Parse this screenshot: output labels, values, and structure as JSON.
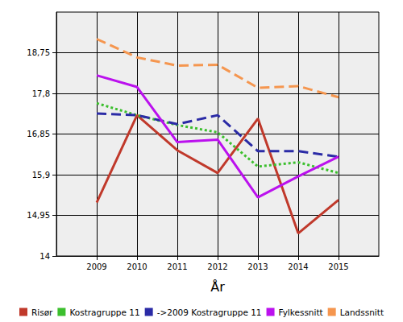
{
  "chart_data": {
    "type": "line",
    "x_label": "År",
    "x": [
      2009,
      2010,
      2011,
      2012,
      2013,
      2014,
      2015
    ],
    "xlim": [
      2008,
      2016
    ],
    "xticks": [
      2009,
      2010,
      2011,
      2012,
      2013,
      2014,
      2015
    ],
    "ylim": [
      14,
      19.7
    ],
    "yticks": [
      14,
      {
        "value": 14.95,
        "label": "14,95"
      },
      {
        "value": 15.9,
        "label": "15,9"
      },
      {
        "value": 16.85,
        "label": "16,85"
      },
      {
        "value": 17.8,
        "label": "17,8"
      },
      {
        "value": 18.75,
        "label": "18,75"
      }
    ],
    "grid": true,
    "legend": "bottom",
    "series": [
      {
        "name": "Risør",
        "color": "#c0392b",
        "line_style": "solid",
        "values": [
          15.25,
          17.29,
          16.47,
          15.94,
          17.21,
          14.53,
          15.31
        ]
      },
      {
        "name": "Kostragruppe 11",
        "color": "#3cbf2e",
        "line_style": "dotted",
        "values": [
          17.57,
          17.29,
          17.06,
          16.89,
          16.09,
          16.19,
          15.94
        ]
      },
      {
        "name": "->2009 Kostragruppe 11",
        "color": "#2b2ba6",
        "line_style": "dashed",
        "values": [
          17.33,
          17.29,
          17.08,
          17.29,
          16.45,
          16.45,
          16.32
        ]
      },
      {
        "name": "Fylkessnitt",
        "color": "#bb11ee",
        "line_style": "solid",
        "values": [
          18.22,
          17.95,
          16.66,
          16.72,
          15.37,
          15.86,
          16.32
        ]
      },
      {
        "name": "Landssnitt",
        "color": "#f5964f",
        "line_style": "dashed",
        "values": [
          19.07,
          18.64,
          18.45,
          18.47,
          17.93,
          17.97,
          17.71
        ]
      }
    ]
  }
}
